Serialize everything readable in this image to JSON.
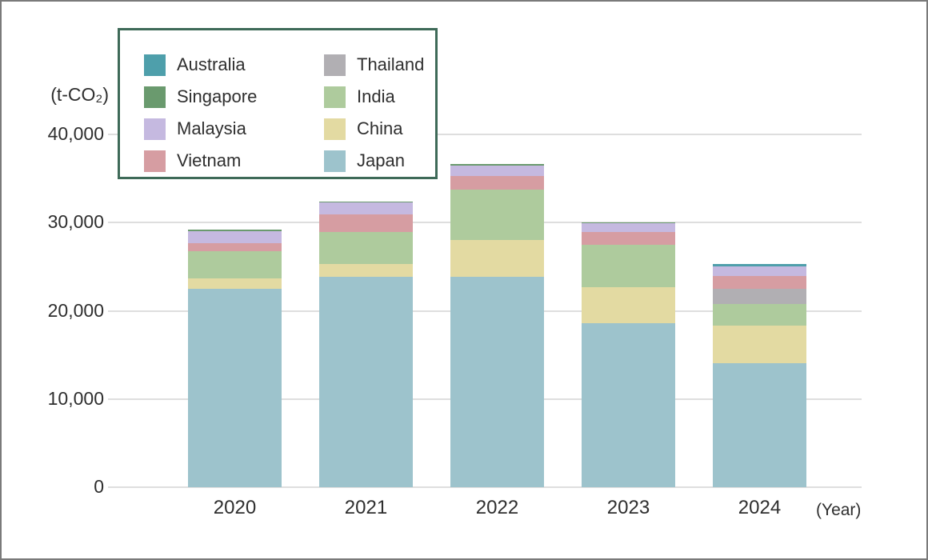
{
  "axis": {
    "unit_label": "(t-CO₂)",
    "year_label": "(Year)",
    "ticks": [
      {
        "label": "40,000",
        "value": 40000
      },
      {
        "label": "30,000",
        "value": 30000
      },
      {
        "label": "20,000",
        "value": 20000
      },
      {
        "label": "10,000",
        "value": 10000
      },
      {
        "label": "0",
        "value": 0
      }
    ]
  },
  "legend": {
    "columns": [
      [
        "Australia",
        "Singapore",
        "Malaysia",
        "Vietnam"
      ],
      [
        "Thailand",
        "India",
        "China",
        "Japan"
      ]
    ]
  },
  "chart_data": {
    "type": "bar",
    "stacked": true,
    "title": "",
    "ylabel": "(t-CO₂)",
    "xlabel": "(Year)",
    "ylim": [
      0,
      40000
    ],
    "grid": true,
    "legend_position": "top-left",
    "categories": [
      "2020",
      "2021",
      "2022",
      "2023",
      "2024"
    ],
    "series": [
      {
        "name": "Japan",
        "color": "#9DC3CC",
        "values": [
          22500,
          23900,
          23850,
          18600,
          14100
        ]
      },
      {
        "name": "China",
        "color": "#E3DAA2",
        "values": [
          1200,
          1450,
          4150,
          4100,
          4250
        ]
      },
      {
        "name": "India",
        "color": "#AECB9D",
        "values": [
          3100,
          3600,
          5700,
          4800,
          2450
        ]
      },
      {
        "name": "Thailand",
        "color": "#B1AFB3",
        "values": [
          0,
          0,
          0,
          0,
          1700
        ]
      },
      {
        "name": "Vietnam",
        "color": "#D69DA2",
        "values": [
          900,
          2000,
          1550,
          1450,
          1450
        ]
      },
      {
        "name": "Malaysia",
        "color": "#C5B9E0",
        "values": [
          1350,
          1300,
          1200,
          1000,
          1100
        ]
      },
      {
        "name": "Singapore",
        "color": "#6A9A6E",
        "values": [
          150,
          150,
          150,
          100,
          0
        ]
      },
      {
        "name": "Australia",
        "color": "#4E9FAB",
        "values": [
          0,
          0,
          0,
          0,
          250
        ]
      }
    ],
    "totals": [
      29200,
      32400,
      36600,
      30050,
      25300
    ],
    "stack_order_note": "series listed bottom-to-top"
  }
}
